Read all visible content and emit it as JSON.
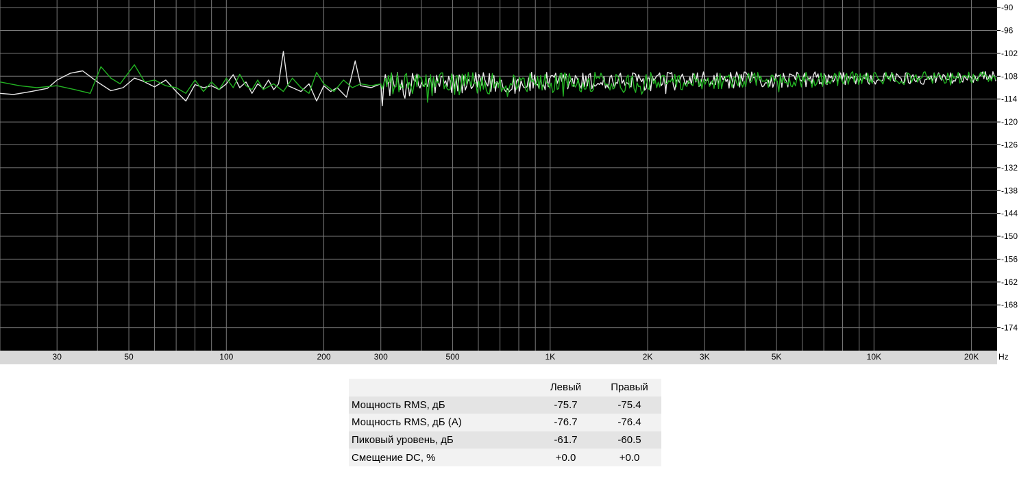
{
  "chart_data": {
    "type": "line",
    "xscale": "log",
    "xlim": [
      20,
      24000
    ],
    "ylim": [
      -180,
      -88
    ],
    "grid": true,
    "y_ticks": [
      -90,
      -96,
      -102,
      -108,
      -114,
      -120,
      -126,
      -132,
      -138,
      -144,
      -150,
      -156,
      -162,
      -168,
      -174
    ],
    "x_tick_values": [
      30,
      50,
      100,
      200,
      300,
      500,
      1000,
      2000,
      3000,
      5000,
      10000,
      20000
    ],
    "x_tick_labels": [
      "30",
      "50",
      "100",
      "200",
      "300",
      "500",
      "1K",
      "2K",
      "3K",
      "5K",
      "10K",
      "20K"
    ],
    "x_unit": "Hz",
    "series": [
      {
        "color": "#e8e8e8",
        "points": [
          [
            20,
            -112.5
          ],
          [
            22,
            -112.8
          ],
          [
            25,
            -112.0
          ],
          [
            28,
            -111.2
          ],
          [
            30,
            -109.0
          ],
          [
            33,
            -107.2
          ],
          [
            36,
            -106.6
          ],
          [
            40,
            -109.5
          ],
          [
            44,
            -111.8
          ],
          [
            48,
            -111.0
          ],
          [
            52,
            -108.5
          ],
          [
            55,
            -109.2
          ],
          [
            60,
            -110.8
          ],
          [
            65,
            -109.0
          ],
          [
            70,
            -112.0
          ],
          [
            75,
            -114.5
          ],
          [
            80,
            -110.2
          ],
          [
            85,
            -111.0
          ],
          [
            90,
            -110.5
          ],
          [
            95,
            -111.5
          ],
          [
            100,
            -110.0
          ],
          [
            105,
            -107.6
          ],
          [
            110,
            -111.0
          ],
          [
            115,
            -109.5
          ],
          [
            120,
            -112.5
          ],
          [
            125,
            -110.0
          ],
          [
            130,
            -111.2
          ],
          [
            135,
            -109.0
          ],
          [
            140,
            -111.5
          ],
          [
            145,
            -110.0
          ],
          [
            150,
            -101.5
          ],
          [
            155,
            -110.5
          ],
          [
            160,
            -111.0
          ],
          [
            170,
            -112.0
          ],
          [
            180,
            -110.0
          ],
          [
            190,
            -114.5
          ],
          [
            200,
            -110.5
          ],
          [
            210,
            -112.0
          ],
          [
            220,
            -111.0
          ],
          [
            235,
            -113.5
          ],
          [
            250,
            -104.0
          ],
          [
            260,
            -110.5
          ],
          [
            280,
            -111.0
          ],
          [
            300,
            -110.0
          ]
        ]
      },
      {
        "color": "#22b222",
        "points": [
          [
            20,
            -109.5
          ],
          [
            23,
            -110.5
          ],
          [
            26,
            -111.0
          ],
          [
            30,
            -110.5
          ],
          [
            34,
            -111.5
          ],
          [
            38,
            -112.5
          ],
          [
            41,
            -105.5
          ],
          [
            44,
            -108.5
          ],
          [
            47,
            -110.0
          ],
          [
            52,
            -105.0
          ],
          [
            56,
            -109.5
          ],
          [
            60,
            -109.0
          ],
          [
            65,
            -110.5
          ],
          [
            70,
            -111.0
          ],
          [
            75,
            -112.5
          ],
          [
            80,
            -109.0
          ],
          [
            85,
            -112.0
          ],
          [
            90,
            -109.5
          ],
          [
            95,
            -111.5
          ],
          [
            100,
            -108.5
          ],
          [
            105,
            -111.0
          ],
          [
            110,
            -107.5
          ],
          [
            115,
            -110.5
          ],
          [
            120,
            -111.5
          ],
          [
            125,
            -109.0
          ],
          [
            130,
            -111.5
          ],
          [
            140,
            -110.0
          ],
          [
            150,
            -112.0
          ],
          [
            160,
            -108.5
          ],
          [
            170,
            -111.0
          ],
          [
            180,
            -112.5
          ],
          [
            190,
            -107.0
          ],
          [
            200,
            -110.0
          ],
          [
            215,
            -112.0
          ],
          [
            230,
            -109.0
          ],
          [
            245,
            -111.0
          ],
          [
            260,
            -110.0
          ],
          [
            280,
            -110.5
          ],
          [
            300,
            -110.0
          ]
        ]
      }
    ]
  },
  "stats": {
    "header": {
      "col_left": "Левый",
      "col_right": "Правый"
    },
    "rows": [
      {
        "label": "Мощность RMS, дБ",
        "left": "-75.7",
        "right": "-75.4"
      },
      {
        "label": "Мощность RMS, дБ (A)",
        "left": "-76.7",
        "right": "-76.4"
      },
      {
        "label": "Пиковый уровень, дБ",
        "left": "-61.7",
        "right": "-60.5"
      },
      {
        "label": "Смещение DC, %",
        "left": "+0.0",
        "right": "+0.0"
      }
    ]
  }
}
